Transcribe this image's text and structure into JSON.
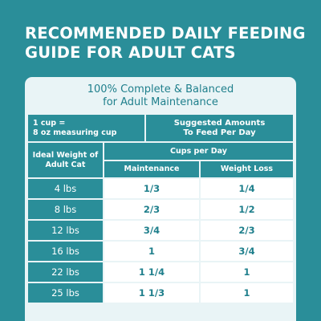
{
  "title": {
    "line1": "RECOMMENDED DAILY FEEDING",
    "line2": "GUIDE FOR ADULT CATS"
  },
  "table": {
    "subtitle_line1": "100% Complete & Balanced",
    "subtitle_line2": "for Adult Maintenance",
    "measure_line1": "1 cup =",
    "measure_line2": "8 oz measuring cup",
    "suggested_line1": "Suggested Amounts",
    "suggested_line2": "To Feed Per Day",
    "weight_header_line1": "Ideal Weight of",
    "weight_header_line2": "Adult Cat",
    "cups_header": "Cups per Day",
    "col_maintenance": "Maintenance",
    "col_weight_loss": "Weight Loss",
    "rows": [
      {
        "weight": "4 lbs",
        "maintenance": "1/3",
        "weight_loss": "1/4"
      },
      {
        "weight": "8 lbs",
        "maintenance": "2/3",
        "weight_loss": "1/2"
      },
      {
        "weight": "12 lbs",
        "maintenance": "3/4",
        "weight_loss": "2/3"
      },
      {
        "weight": "16 lbs",
        "maintenance": "1",
        "weight_loss": "3/4"
      },
      {
        "weight": "22 lbs",
        "maintenance": "1 1/4",
        "weight_loss": "1"
      },
      {
        "weight": "25 lbs",
        "maintenance": "1 1/3",
        "weight_loss": "1"
      }
    ]
  },
  "colors": {
    "teal": "#2a8e99",
    "light": "#e9f4f6",
    "text_teal": "#1f7f8c"
  }
}
